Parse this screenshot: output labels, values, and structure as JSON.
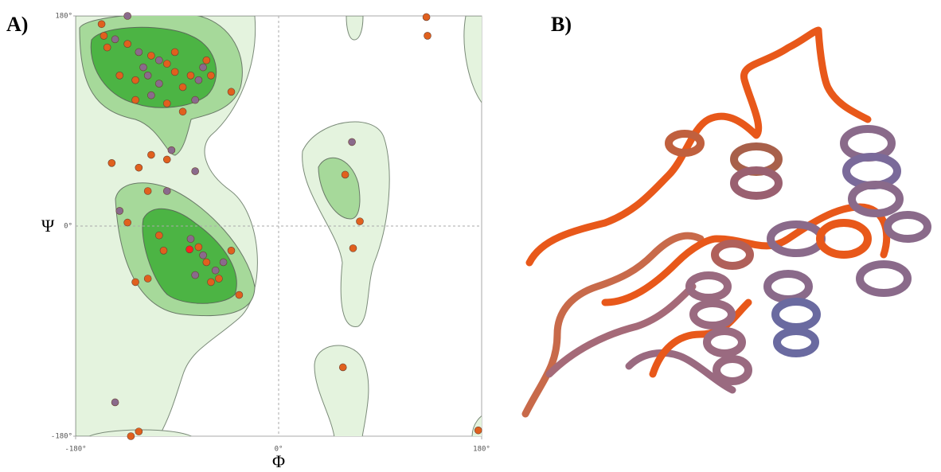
{
  "panel_labels": [
    "A)",
    "B)"
  ],
  "chart_data": {
    "type": "scatter",
    "x_label": "Φ",
    "y_label": "Ψ",
    "xlim": [
      -180,
      180
    ],
    "ylim": [
      -180,
      180
    ],
    "xticks": [
      {
        "value": -180,
        "label": "-180°"
      },
      {
        "value": 0,
        "label": "0°"
      },
      {
        "value": 180,
        "label": "180°"
      }
    ],
    "yticks": [
      {
        "value": -180,
        "label": "-180°"
      },
      {
        "value": 0,
        "label": "0°"
      },
      {
        "value": 180,
        "label": "180°"
      }
    ],
    "zero_lines": true,
    "x": [
      -157,
      -134,
      -155,
      -145,
      -134,
      -152,
      -124,
      -113,
      -106,
      -99,
      -120,
      -92,
      -78,
      -71,
      -127,
      -106,
      -85,
      -64,
      -67,
      -60,
      -113,
      -99,
      -85,
      -127,
      -42,
      -74,
      -92,
      -141,
      -116,
      -95,
      -148,
      -124,
      -113,
      -99,
      -74,
      -141,
      -116,
      -99,
      -134,
      -106,
      -78,
      -71,
      -67,
      -64,
      -56,
      -53,
      -74,
      -60,
      -49,
      -79,
      -116,
      -102,
      -127,
      -35,
      -42,
      -145,
      -124,
      -131,
      65,
      59,
      72,
      66,
      57,
      131,
      132,
      177
    ],
    "values": [
      173,
      180,
      163,
      160,
      156,
      153,
      149,
      146,
      142,
      139,
      136,
      132,
      129,
      125,
      125,
      122,
      119,
      142,
      136,
      129,
      112,
      105,
      98,
      108,
      115,
      108,
      149,
      129,
      129,
      65,
      54,
      50,
      61,
      57,
      47,
      13,
      30,
      30,
      3,
      -8,
      -11,
      -18,
      -25,
      -31,
      -38,
      -45,
      -42,
      -48,
      -31,
      -20,
      -45,
      -21,
      -48,
      -59,
      -21,
      -151,
      -176,
      -180,
      72,
      44,
      4,
      -19,
      -121,
      179,
      163,
      -175
    ],
    "colors": [
      "#e0601e",
      "#8a6a8c",
      "#e0601e",
      "#8a6a8c",
      "#e0601e",
      "#e0601e",
      "#8a6a8c",
      "#e0601e",
      "#8a6a8c",
      "#e0601e",
      "#8a6a8c",
      "#e0601e",
      "#e0601e",
      "#8a6a8c",
      "#e0601e",
      "#8a6a8c",
      "#e0601e",
      "#e0601e",
      "#8a6a8c",
      "#e0601e",
      "#8a6a8c",
      "#e0601e",
      "#e0601e",
      "#e0601e",
      "#e0601e",
      "#8a6a8c",
      "#e0601e",
      "#e0601e",
      "#8a6a8c",
      "#8a6a8c",
      "#e0601e",
      "#e0601e",
      "#e0601e",
      "#e0601e",
      "#8a6a8c",
      "#8a6a8c",
      "#e0601e",
      "#8a6a8c",
      "#e0601e",
      "#e0601e",
      "#8a6a8c",
      "#e0601e",
      "#8a6a8c",
      "#e0601e",
      "#8a6a8c",
      "#e0601e",
      "#8a6a8c",
      "#e0601e",
      "#8a6a8c",
      "#ff2020",
      "#e0601e",
      "#e0601e",
      "#e0601e",
      "#e0601e",
      "#e0601e",
      "#8a6a8c",
      "#e0601e",
      "#e0601e",
      "#8a6a8c",
      "#e0601e",
      "#e0601e",
      "#e0601e",
      "#e0601e",
      "#e0601e",
      "#e0601e",
      "#e0601e"
    ]
  }
}
